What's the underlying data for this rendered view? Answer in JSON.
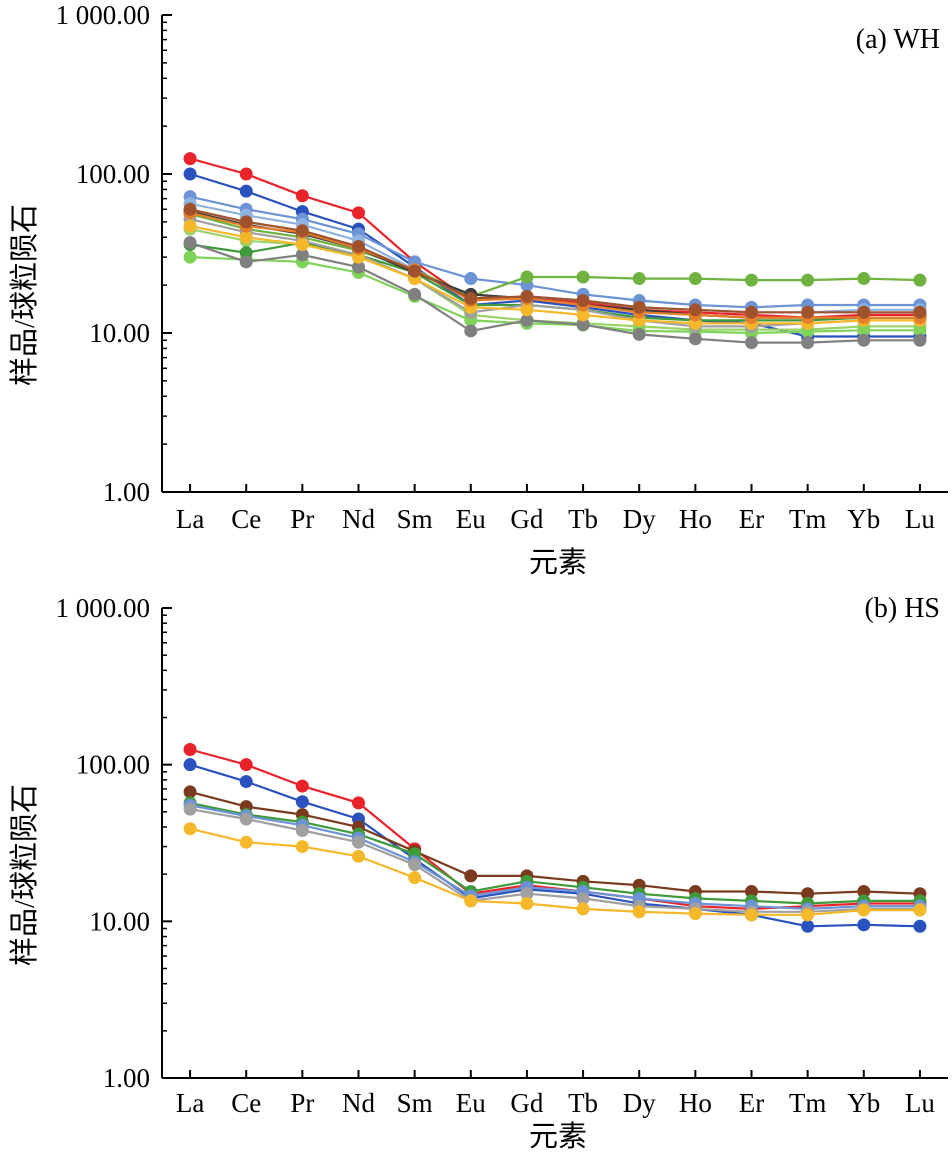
{
  "chart_data": [
    {
      "type": "line",
      "panel_label": "(a) WH",
      "xlabel": "元素",
      "ylabel": "样品/球粒陨石",
      "y_scale": "log",
      "ylim": [
        1,
        1000
      ],
      "y_tick_labels": [
        "1.00",
        "10.00",
        "100.00",
        "1 000.00"
      ],
      "categories": [
        "La",
        "Ce",
        "Pr",
        "Nd",
        "Sm",
        "Eu",
        "Gd",
        "Tb",
        "Dy",
        "Ho",
        "Er",
        "Tm",
        "Yb",
        "Lu"
      ],
      "grid": false,
      "legend": "none",
      "series": [
        {
          "color": "#e8232a",
          "values": [
            125,
            100,
            73,
            57,
            28,
            16,
            17,
            15.5,
            14,
            13.5,
            13,
            12.5,
            13,
            13
          ]
        },
        {
          "color": "#2a52be",
          "values": [
            100,
            78,
            58,
            45,
            26,
            15,
            16,
            14.5,
            13,
            12,
            11.5,
            9.5,
            9.5,
            9.5
          ]
        },
        {
          "color": "#6b93d6",
          "values": [
            72,
            60,
            52,
            42,
            28,
            22,
            20,
            17.5,
            16,
            15,
            14.5,
            15,
            15,
            15
          ]
        },
        {
          "color": "#8fb2e0",
          "values": [
            65,
            55,
            48,
            38,
            25,
            16,
            17,
            16,
            14.5,
            14,
            13.5,
            13.5,
            14,
            14
          ]
        },
        {
          "color": "#6fb23f",
          "values": [
            56,
            45,
            40,
            33,
            25,
            17,
            22.5,
            22.5,
            22,
            22,
            21.5,
            21.5,
            22,
            21.5
          ]
        },
        {
          "color": "#9bd36b",
          "values": [
            45,
            38,
            36,
            30,
            22,
            13,
            12,
            11.5,
            11,
            10.5,
            10.5,
            10.5,
            11,
            11
          ]
        },
        {
          "color": "#7fd35a",
          "values": [
            30,
            29,
            28,
            24,
            17,
            12,
            11.5,
            11.2,
            10.3,
            10.2,
            10,
            10.2,
            10.4,
            10.4
          ]
        },
        {
          "color": "#3f9a3a",
          "values": [
            36,
            32,
            37,
            31,
            24,
            15,
            15,
            14,
            12.5,
            12,
            12,
            12,
            12.5,
            12.5
          ]
        },
        {
          "color": "#808080",
          "values": [
            37,
            28,
            31,
            26,
            17.5,
            10.3,
            12,
            11.3,
            9.8,
            9.2,
            8.7,
            8.7,
            9,
            9
          ]
        },
        {
          "color": "#3c3c3c",
          "values": [
            58,
            48,
            42,
            34,
            24,
            17.5,
            16.5,
            15,
            14,
            13,
            12.5,
            12.5,
            12.5,
            12.5
          ]
        },
        {
          "color": "#a0a0a0",
          "values": [
            52,
            43,
            38,
            31,
            22,
            13.5,
            15,
            14,
            12,
            11,
            11,
            11.5,
            12,
            12
          ]
        },
        {
          "color": "#f5b82a",
          "values": [
            47,
            40,
            36,
            30,
            22,
            14.5,
            14,
            13,
            12,
            11.5,
            11.5,
            11.5,
            12,
            12
          ]
        },
        {
          "color": "#e57f2a",
          "values": [
            57,
            47,
            43,
            34,
            25,
            16,
            16.5,
            15,
            13.5,
            13,
            12.5,
            12.5,
            12.5,
            12.5
          ]
        },
        {
          "color": "#a0522d",
          "values": [
            60,
            50,
            44,
            35,
            24.5,
            16.5,
            17,
            16,
            14.5,
            14,
            13.5,
            13.5,
            13.5,
            13.5
          ]
        }
      ]
    },
    {
      "type": "line",
      "panel_label": "(b) HS",
      "xlabel": "元素",
      "ylabel": "样品/球粒陨石",
      "y_scale": "log",
      "ylim": [
        1,
        1000
      ],
      "y_tick_labels": [
        "1.00",
        "10.00",
        "100.00",
        "1 000.00"
      ],
      "categories": [
        "La",
        "Ce",
        "Pr",
        "Nd",
        "Sm",
        "Eu",
        "Gd",
        "Tb",
        "Dy",
        "Ho",
        "Er",
        "Tm",
        "Yb",
        "Lu"
      ],
      "grid": false,
      "legend": "none",
      "series": [
        {
          "color": "#e8232a",
          "values": [
            125,
            100,
            73,
            57,
            29,
            15,
            17,
            15.5,
            14,
            12.5,
            12,
            12.5,
            13,
            13
          ]
        },
        {
          "color": "#2a52be",
          "values": [
            100,
            78,
            58,
            45,
            25,
            14,
            16,
            15,
            13,
            12,
            11,
            9.3,
            9.5,
            9.3
          ]
        },
        {
          "color": "#7a3a1e",
          "values": [
            67,
            54,
            48,
            40,
            28,
            19.5,
            19.5,
            18,
            17,
            15.5,
            15.5,
            15,
            15.5,
            15
          ]
        },
        {
          "color": "#3f9a3a",
          "values": [
            57,
            48,
            43,
            36,
            27,
            15.5,
            18,
            16.5,
            15,
            14,
            13.5,
            13,
            13.5,
            13.5
          ]
        },
        {
          "color": "#6b93d6",
          "values": [
            55,
            47,
            41,
            34,
            24,
            14.5,
            16.5,
            15.5,
            14,
            13,
            12.5,
            12,
            12.5,
            12.5
          ]
        },
        {
          "color": "#a0a0a0",
          "values": [
            52,
            45,
            38,
            32,
            23,
            13.5,
            15,
            14,
            12.5,
            12,
            11.5,
            11.5,
            12,
            12
          ]
        },
        {
          "color": "#f5b82a",
          "values": [
            39,
            32,
            30,
            26,
            19,
            13.5,
            13,
            12,
            11.5,
            11.2,
            11,
            11,
            11.8,
            11.8
          ]
        }
      ]
    }
  ]
}
